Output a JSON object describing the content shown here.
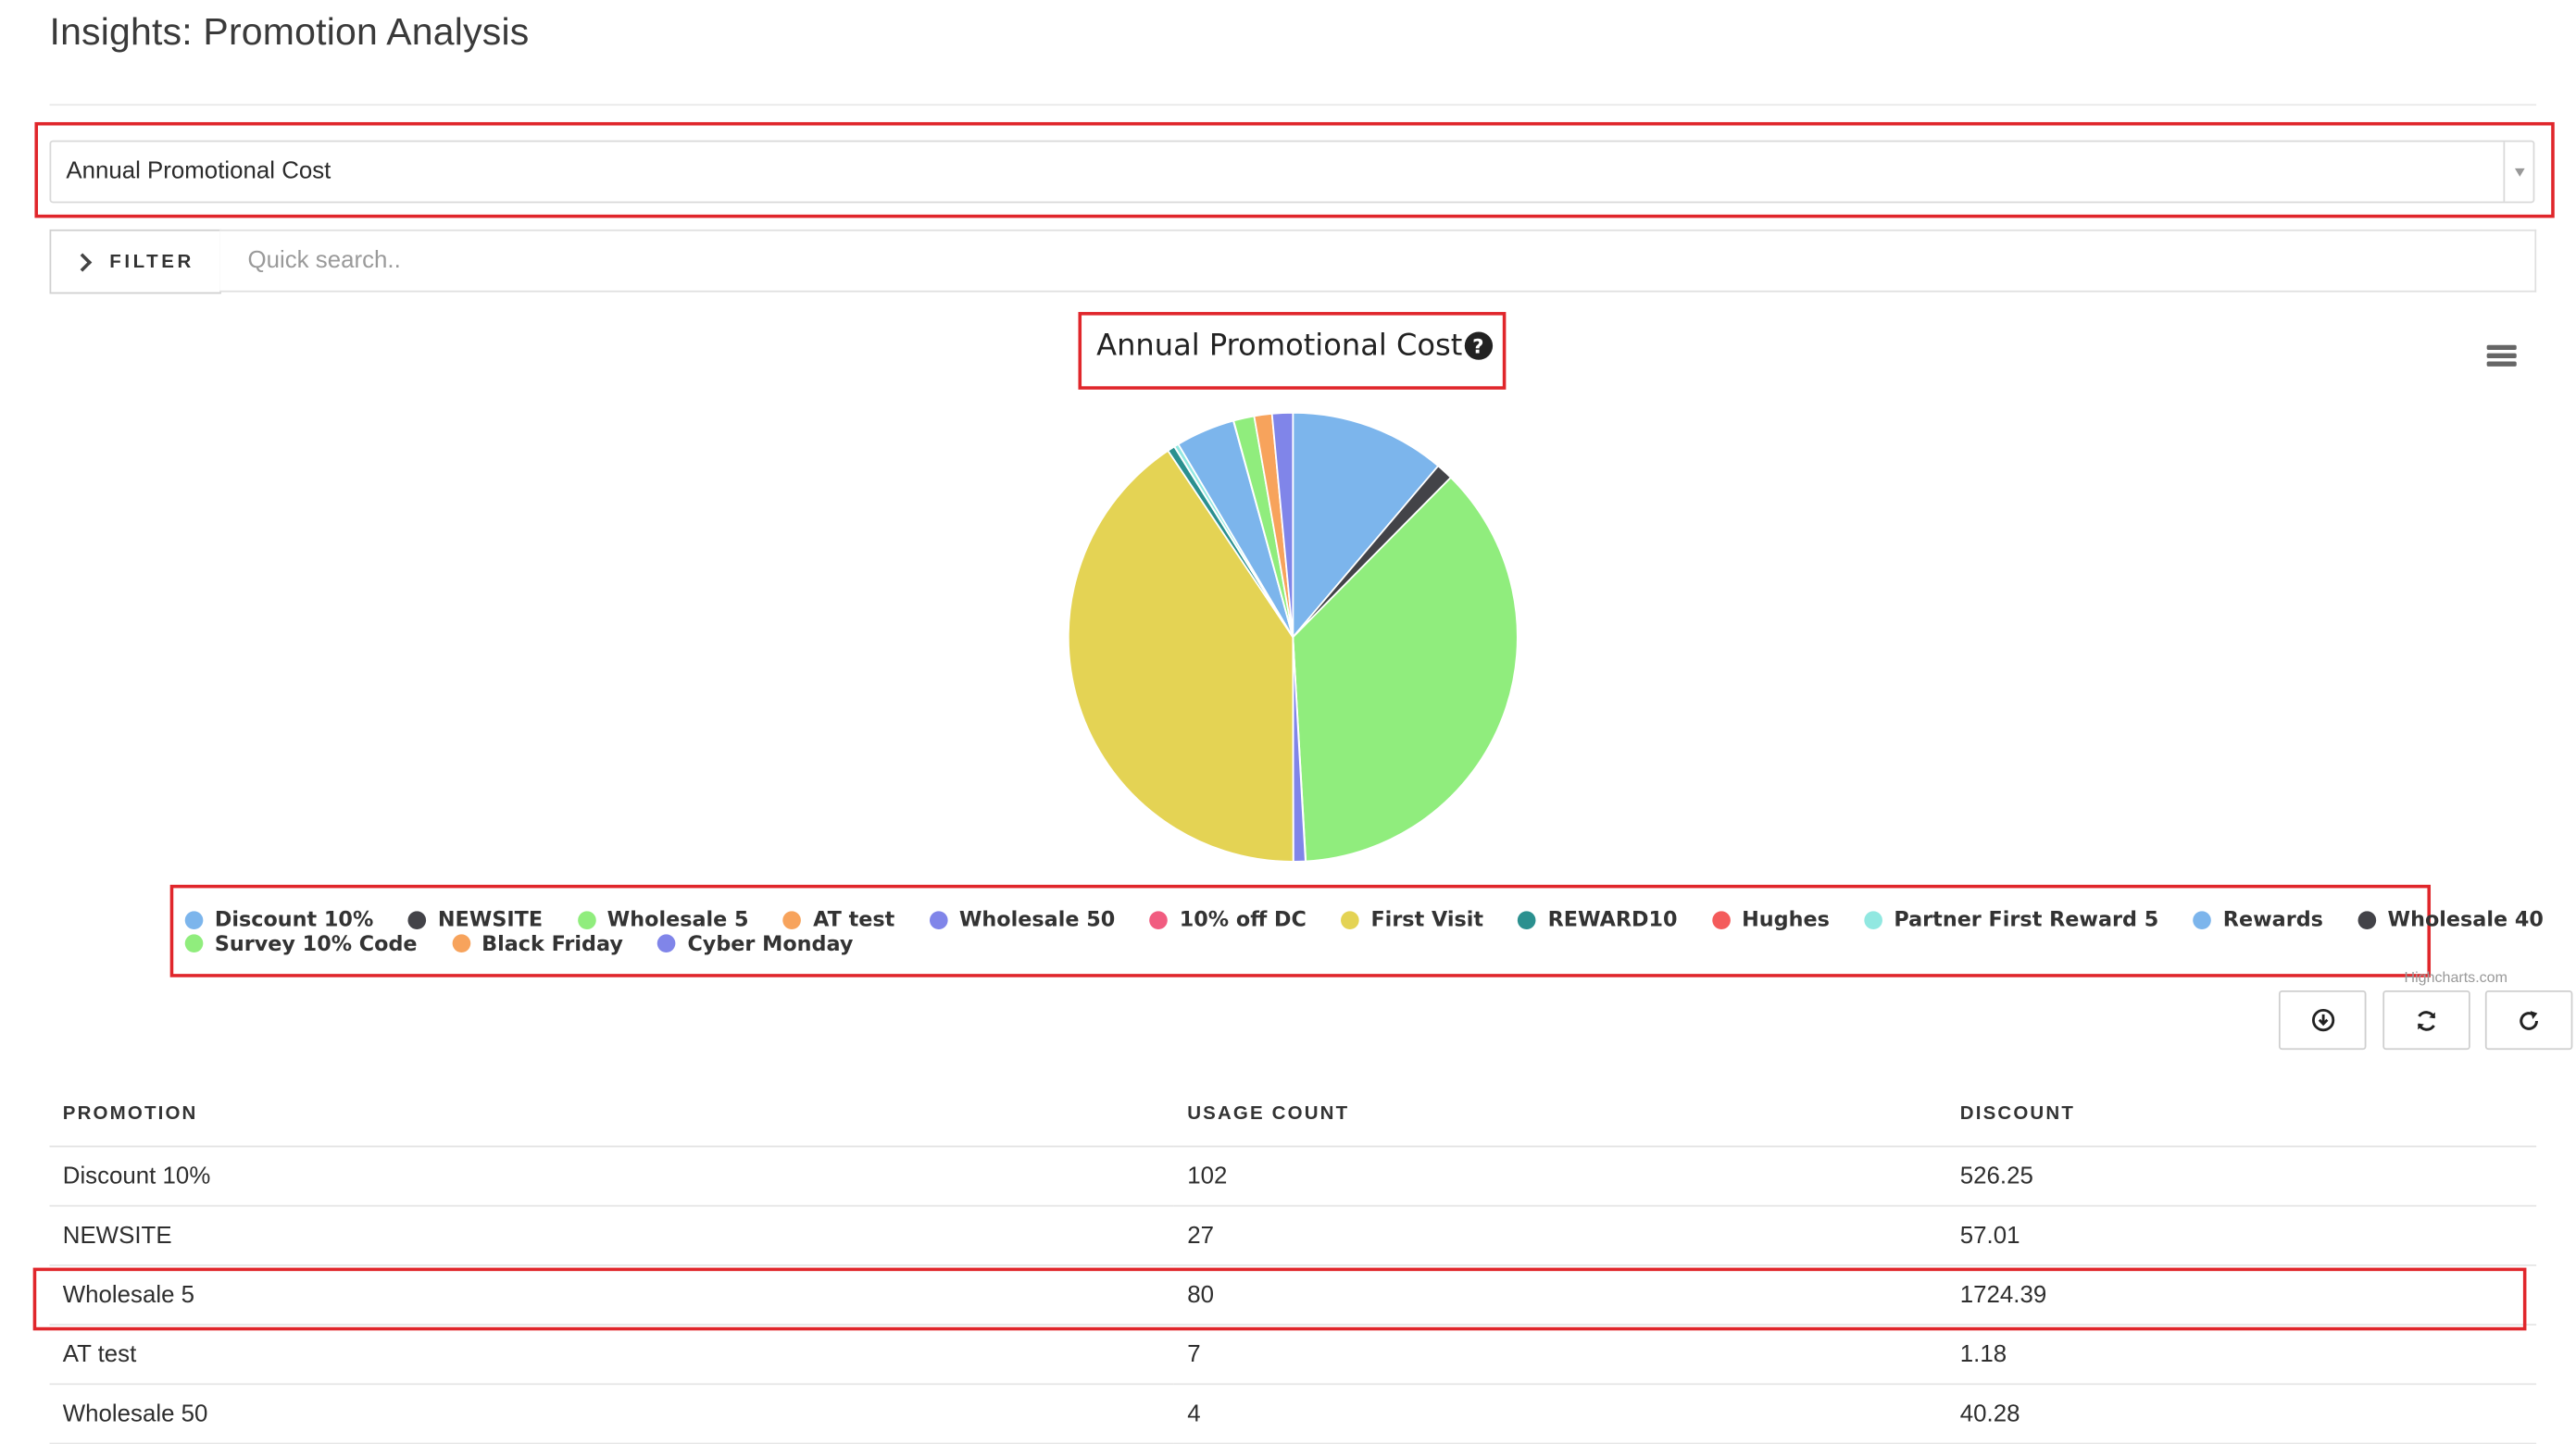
{
  "page": {
    "title": "Insights: Promotion Analysis"
  },
  "report_select": {
    "value": "Annual Promotional Cost"
  },
  "filter": {
    "label": "FILTER"
  },
  "search": {
    "placeholder": "Quick search.."
  },
  "chart_data": {
    "type": "pie",
    "title": "Annual Promotional Cost",
    "legend_position": "bottom",
    "credit": "Highcharts.com",
    "slices": [
      {
        "name": "Discount 10%",
        "value": 526.25,
        "color": "#7cb5ec"
      },
      {
        "name": "NEWSITE",
        "value": 57.01,
        "color": "#434348"
      },
      {
        "name": "Wholesale 5",
        "value": 1724.39,
        "color": "#90ed7d"
      },
      {
        "name": "AT test",
        "value": 1.18,
        "color": "#f7a35c"
      },
      {
        "name": "Wholesale 50",
        "value": 40.28,
        "color": "#8085e9"
      },
      {
        "name": "10% off DC",
        "value": 0.5,
        "color": "#f15c80"
      },
      {
        "name": "First Visit",
        "value": 1910,
        "color": "#e4d354"
      },
      {
        "name": "REWARD10",
        "value": 25,
        "color": "#2b908f"
      },
      {
        "name": "Hughes",
        "value": 0.5,
        "color": "#f45b5b"
      },
      {
        "name": "Partner First Reward 5",
        "value": 15,
        "color": "#91e8e1"
      },
      {
        "name": "Rewards",
        "value": 200,
        "color": "#7cb5ec"
      },
      {
        "name": "Wholesale 40",
        "value": 1,
        "color": "#434348"
      },
      {
        "name": "Survey 10% Code",
        "value": 70,
        "color": "#90ed7d"
      },
      {
        "name": "Black Friday",
        "value": 60,
        "color": "#f7a35c"
      },
      {
        "name": "Cyber Monday",
        "value": 70,
        "color": "#8085e9"
      }
    ]
  },
  "actions": {
    "download_icon": "download-circle-icon",
    "sync_icon": "sync-icon",
    "refresh_icon": "refresh-icon"
  },
  "table": {
    "headers": [
      "PROMOTION",
      "USAGE COUNT",
      "DISCOUNT"
    ],
    "rows": [
      [
        "Discount 10%",
        "102",
        "526.25"
      ],
      [
        "NEWSITE",
        "27",
        "57.01"
      ],
      [
        "Wholesale 5",
        "80",
        "1724.39"
      ],
      [
        "AT test",
        "7",
        "1.18"
      ],
      [
        "Wholesale 50",
        "4",
        "40.28"
      ]
    ]
  },
  "colors": {
    "highlight": "#e0262b"
  }
}
